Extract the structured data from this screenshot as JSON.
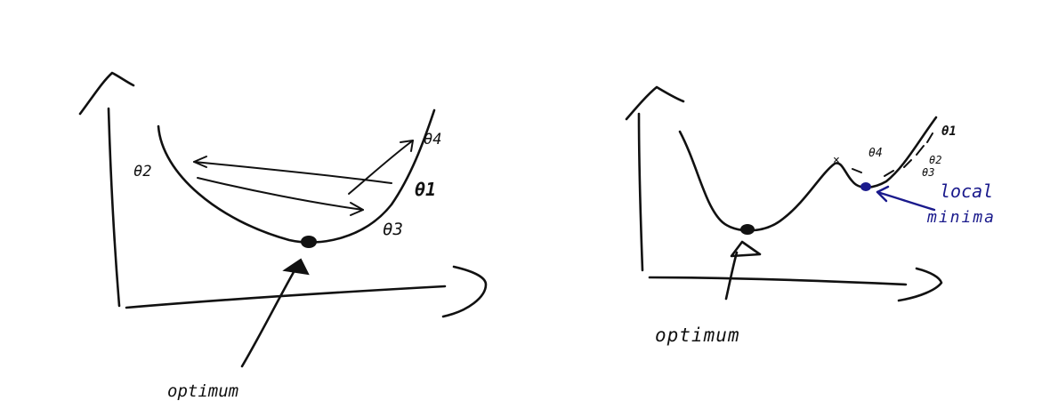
{
  "left_panel": {
    "optimum_label": "optimum",
    "theta_labels": {
      "t1": "θ1",
      "t2": "θ2",
      "t3": "θ3",
      "t4": "θ4"
    }
  },
  "right_panel": {
    "optimum_label": "optimum",
    "local_label_line1": "local",
    "local_label_line2": "minima",
    "theta_labels": {
      "t1": "θ1",
      "t2": "θ2",
      "t3": "θ3",
      "t4": "θ4"
    },
    "local_marker": "×"
  },
  "colors": {
    "ink": "#111111",
    "accent_blue": "#1a1a8c",
    "background": "#ffffff"
  }
}
